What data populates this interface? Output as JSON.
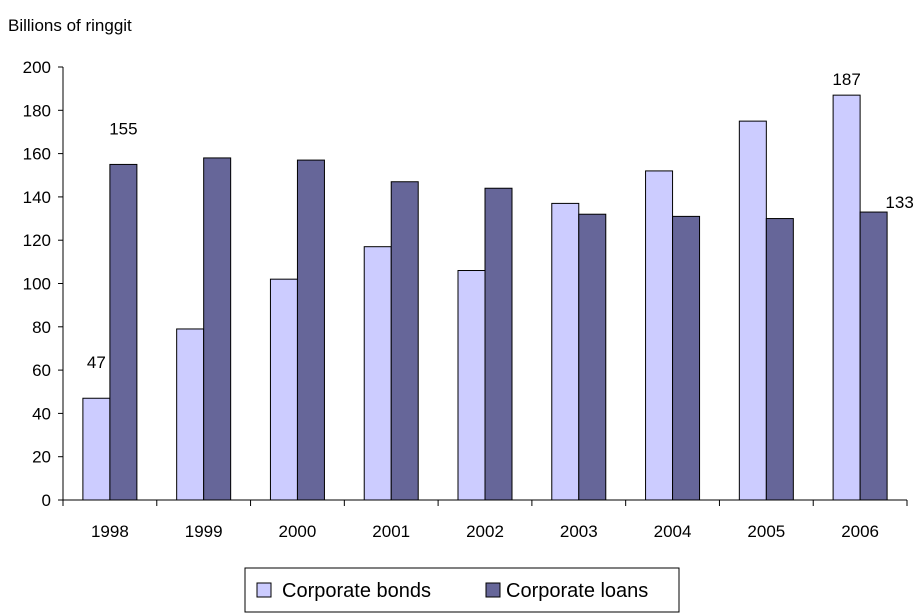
{
  "chart_data": {
    "type": "bar",
    "title": "",
    "ylabel": "Billions of ringgit",
    "xlabel": "",
    "ylim": [
      0,
      200
    ],
    "yticks": [
      0,
      20,
      40,
      60,
      80,
      100,
      120,
      140,
      160,
      180,
      200
    ],
    "categories": [
      "1998",
      "1999",
      "2000",
      "2001",
      "2002",
      "2003",
      "2004",
      "2005",
      "2006"
    ],
    "series": [
      {
        "name": "Corporate bonds",
        "color": "#ccccff",
        "values": [
          47,
          79,
          102,
          117,
          106,
          137,
          152,
          175,
          187
        ]
      },
      {
        "name": "Corporate loans",
        "color": "#666699",
        "values": [
          155,
          158,
          157,
          147,
          144,
          132,
          131,
          130,
          133
        ]
      }
    ],
    "data_labels": [
      {
        "series": 0,
        "index": 0,
        "text": "47"
      },
      {
        "series": 1,
        "index": 0,
        "text": "155"
      },
      {
        "series": 0,
        "index": 8,
        "text": "187"
      },
      {
        "series": 1,
        "index": 8,
        "text": "133"
      }
    ],
    "grid": false,
    "legend_position": "bottom"
  }
}
